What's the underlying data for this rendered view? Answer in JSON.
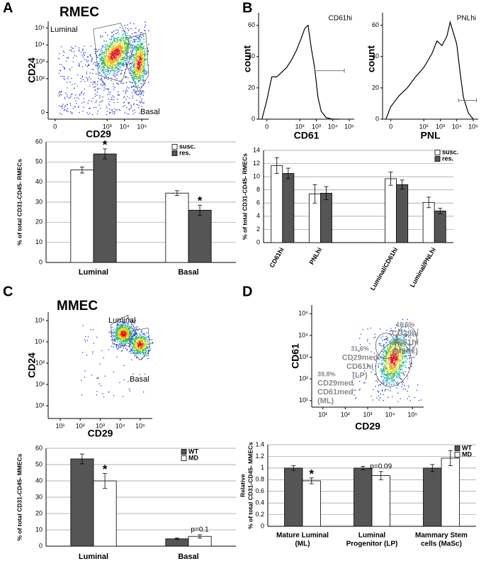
{
  "panel_labels": [
    "A",
    "B",
    "C",
    "D"
  ],
  "chart_data": [
    {
      "type": "density",
      "title": "RMEC",
      "xlabel": "CD29",
      "ylabel": "CD24",
      "gate_labels": [
        "Luminal",
        "Basal"
      ],
      "xlim": [
        -0.4,
        5.4
      ],
      "xticks": [
        {
          "value": 0,
          "label": "0"
        },
        {
          "value": 3,
          "label": "10³"
        },
        {
          "value": 4,
          "label": "10⁴"
        },
        {
          "value": 5,
          "label": "10⁵"
        }
      ],
      "ylim": [
        -0.4,
        5.4
      ],
      "yticks": [
        {
          "value": 0,
          "label": "0"
        },
        {
          "value": 2,
          "label": "10²"
        },
        {
          "value": 3,
          "label": "10³"
        },
        {
          "value": 4,
          "label": "10⁴"
        },
        {
          "value": 5,
          "label": "10⁵"
        }
      ]
    },
    {
      "type": "bar",
      "ylabel": "% of total CD31-CD45- RMECs",
      "categories": [
        "Luminal",
        "Basal"
      ],
      "series": [
        {
          "name": "susc.",
          "color": "#ffffff",
          "values": [
            46,
            34.5
          ],
          "errors": [
            1.5,
            1.2
          ],
          "notes": [
            null,
            null
          ]
        },
        {
          "name": "res.",
          "color": "#555555",
          "values": [
            54,
            26
          ],
          "errors": [
            2.5,
            2.5
          ],
          "notes": [
            "*",
            "*"
          ]
        }
      ],
      "ylim": [
        0,
        60
      ],
      "yticks": [
        0,
        10,
        20,
        30,
        40,
        50,
        60
      ],
      "grid": true
    },
    {
      "type": "histogram-curve",
      "label": "CD61hi",
      "xlabel": "CD61",
      "ylabel": "count",
      "x": [
        -0.3,
        0,
        0.3,
        0.6,
        0.9,
        1.2,
        1.5,
        1.8,
        2.1,
        2.3,
        2.5,
        2.7,
        2.9,
        3.1,
        3.3,
        3.6,
        4.0,
        4.4
      ],
      "values": [
        0,
        12,
        27,
        27,
        30,
        33,
        38,
        44,
        52,
        58,
        60,
        45,
        33,
        14,
        5,
        1,
        0,
        0
      ],
      "gate": {
        "y": 31,
        "x": [
          2.9,
          4.7
        ]
      },
      "xlim": [
        -0.5,
        5.3
      ],
      "xticks": [
        {
          "value": 0,
          "label": "0"
        },
        {
          "value": 2,
          "label": "10²"
        },
        {
          "value": 3,
          "label": "10³"
        },
        {
          "value": 4,
          "label": "10⁴"
        },
        {
          "value": 5,
          "label": "10⁵"
        }
      ],
      "ylim": [
        0,
        68
      ],
      "yticks": [
        0,
        20,
        40,
        60
      ]
    },
    {
      "type": "histogram-curve",
      "label": "PNLhi",
      "xlabel": "PNL",
      "ylabel": "count",
      "x": [
        -0.3,
        0,
        0.5,
        1,
        1.5,
        2,
        2.5,
        2.8,
        3.1,
        3.4,
        3.6,
        3.8,
        4.0,
        4.2,
        4.4,
        4.7,
        5.0
      ],
      "values": [
        0,
        8,
        15,
        20,
        27,
        33,
        42,
        50,
        47,
        53,
        62,
        55,
        48,
        30,
        14,
        4,
        0
      ],
      "gate": {
        "y": 12,
        "x": [
          4.1,
          5.2
        ]
      },
      "xlim": [
        -0.5,
        5.3
      ],
      "xticks": [
        {
          "value": 0,
          "label": "0"
        },
        {
          "value": 2,
          "label": "10²"
        },
        {
          "value": 3,
          "label": "10³"
        },
        {
          "value": 4,
          "label": "10⁴"
        },
        {
          "value": 5,
          "label": "10⁵"
        }
      ],
      "ylim": [
        0,
        68
      ],
      "yticks": [
        0,
        20,
        40,
        60
      ]
    },
    {
      "type": "bar",
      "ylabel": "% of total CD31-CD45- RMECs",
      "categories": [
        "CD61hi",
        "PNLhi",
        null,
        "Luminal/CD61hi",
        "Luminal/PNLhi"
      ],
      "series": [
        {
          "name": "susc.",
          "color": "#ffffff",
          "values": [
            11.7,
            7.4,
            null,
            9.7,
            6.1
          ],
          "errors": [
            1.2,
            1.4,
            null,
            1.0,
            0.8
          ],
          "notes": [
            null,
            null,
            null,
            null,
            null
          ]
        },
        {
          "name": "res.",
          "color": "#555555",
          "values": [
            10.5,
            7.5,
            null,
            8.8,
            4.8
          ],
          "errors": [
            0.8,
            1.0,
            null,
            0.7,
            0.4
          ],
          "notes": [
            null,
            null,
            null,
            null,
            null
          ]
        }
      ],
      "ylim": [
        0,
        14
      ],
      "yticks": [
        0,
        2,
        4,
        6,
        8,
        10,
        12,
        14
      ],
      "grid": true
    },
    {
      "type": "density",
      "title": "MMEC",
      "xlabel": "CD29",
      "ylabel": "CD24",
      "gate_labels": [
        "Luminal",
        "Basal"
      ],
      "xlim": [
        0.4,
        5.6
      ],
      "xticks": [
        {
          "value": 1,
          "label": "10¹"
        },
        {
          "value": 2,
          "label": "10²"
        },
        {
          "value": 3,
          "label": "10³"
        },
        {
          "value": 4,
          "label": "10⁴"
        },
        {
          "value": 5,
          "label": "10⁵"
        }
      ],
      "ylim": [
        0.4,
        5.4
      ],
      "yticks": [
        {
          "value": 1,
          "label": "10¹"
        },
        {
          "value": 2,
          "label": "10²"
        },
        {
          "value": 3,
          "label": "10³"
        },
        {
          "value": 4,
          "label": "10⁴"
        },
        {
          "value": 5,
          "label": "10⁵"
        }
      ]
    },
    {
      "type": "bar",
      "ylabel": "% of total CD31-CD45- MMECs",
      "categories": [
        "Luminal",
        "Basal"
      ],
      "series": [
        {
          "name": "WT",
          "color": "#555555",
          "values": [
            53.5,
            4.5
          ],
          "errors": [
            3,
            0.5
          ],
          "notes": [
            null,
            null
          ]
        },
        {
          "name": "MD",
          "color": "#ffffff",
          "values": [
            40,
            6
          ],
          "errors": [
            4.5,
            1
          ],
          "notes": [
            "*",
            "p=0.1"
          ]
        }
      ],
      "ylim": [
        0,
        60
      ],
      "yticks": [
        0,
        10,
        20,
        30,
        40,
        50,
        60
      ],
      "grid": true
    },
    {
      "type": "density",
      "xlabel": "CD29",
      "ylabel": "CD61",
      "annotations": [
        [
          "39.8%",
          "CD29med",
          "CD61med",
          "(ML)"
        ],
        [
          "31.6%",
          "CD29med",
          "CD61hi",
          "(LP)"
        ],
        [
          "16.5%",
          "CD29hi",
          "CD61hi",
          "(MaSc)"
        ]
      ],
      "xlim": [
        0.5,
        5.5
      ],
      "xticks": [
        {
          "value": 1,
          "label": "10¹"
        },
        {
          "value": 2,
          "label": "10²"
        },
        {
          "value": 3,
          "label": "10³"
        },
        {
          "value": 4,
          "label": "10⁴"
        },
        {
          "value": 5,
          "label": "10⁵"
        }
      ],
      "ylim": [
        0.7,
        5.4
      ],
      "yticks": [
        {
          "value": 1,
          "label": "10¹"
        },
        {
          "value": 2,
          "label": "10²"
        },
        {
          "value": 3,
          "label": "10³"
        },
        {
          "value": 4,
          "label": "10⁴"
        },
        {
          "value": 5,
          "label": "10⁵"
        }
      ]
    },
    {
      "type": "bar",
      "ylabel": [
        "Relative",
        "% of total CD31-CD45- MMECs"
      ],
      "categories": [
        [
          "Mature Luminal",
          "(ML)"
        ],
        [
          "Luminal",
          "Progenitor (LP)"
        ],
        [
          "Mammary Stem",
          "cells (MaSc)"
        ]
      ],
      "series": [
        {
          "name": "WT",
          "color": "#555555",
          "values": [
            1.0,
            1.0,
            1.0
          ],
          "errors": [
            0.04,
            0.03,
            0.06
          ],
          "notes": [
            null,
            null,
            null
          ]
        },
        {
          "name": "MD",
          "color": "#ffffff",
          "values": [
            0.78,
            0.87,
            1.17
          ],
          "errors": [
            0.05,
            0.07,
            0.13
          ],
          "notes": [
            "*",
            "p=0.09",
            null
          ]
        }
      ],
      "ylim": [
        0,
        1.4
      ],
      "yticks": [
        0,
        0.2,
        0.4,
        0.6,
        0.8,
        1,
        1.2,
        1.4
      ],
      "grid": true
    }
  ]
}
